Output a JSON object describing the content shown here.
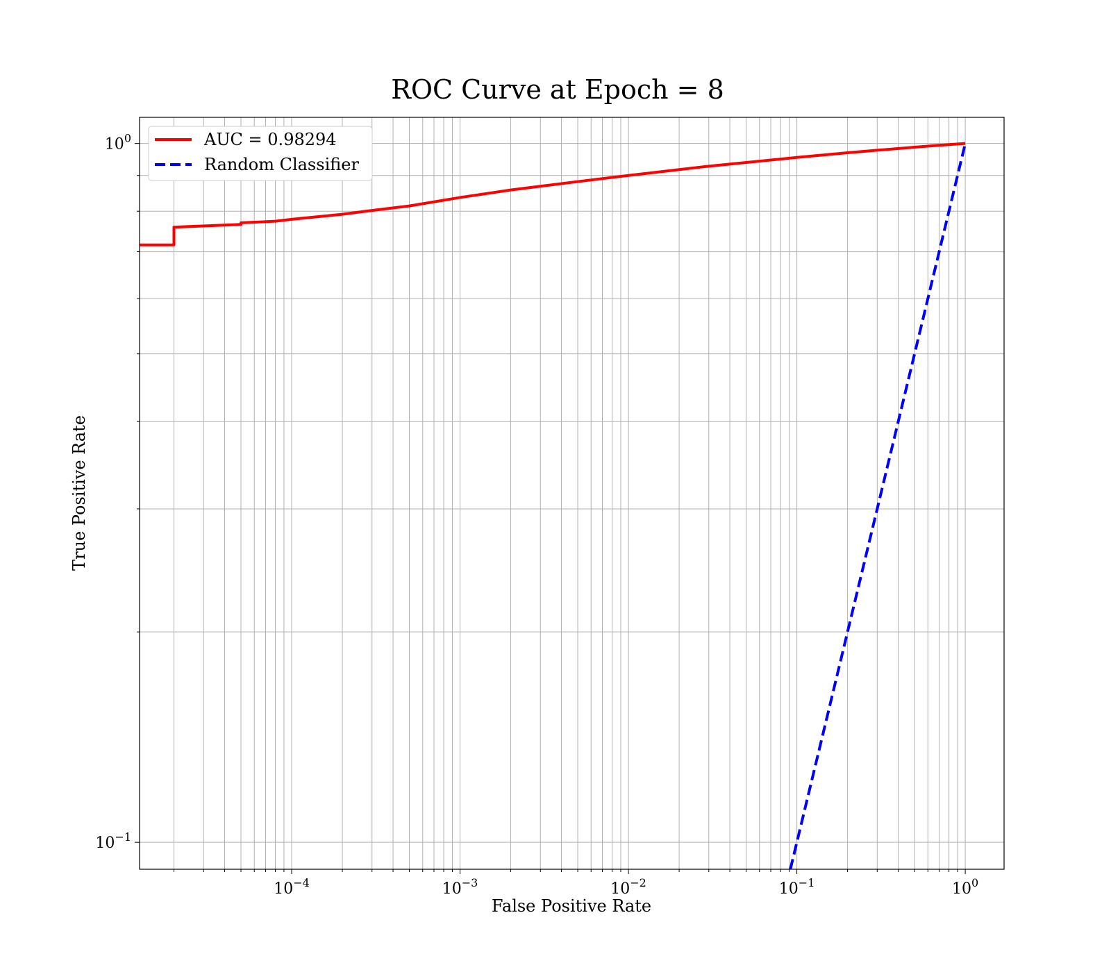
{
  "chart_data": {
    "type": "line",
    "title": "ROC Curve at Epoch = 8",
    "xlabel": "False Positive Rate",
    "ylabel": "True Positive Rate",
    "xscale": "log",
    "yscale": "log",
    "xlim": [
      1.25e-05,
      1.7
    ],
    "ylim": [
      0.0915,
      1.09
    ],
    "grid": true,
    "legend_position": "top-left",
    "x_tick_labels": [
      {
        "value": 0.0001,
        "base": "10",
        "exp": "−4"
      },
      {
        "value": 0.001,
        "base": "10",
        "exp": "−3"
      },
      {
        "value": 0.01,
        "base": "10",
        "exp": "−2"
      },
      {
        "value": 0.1,
        "base": "10",
        "exp": "−1"
      },
      {
        "value": 1,
        "base": "10",
        "exp": "0"
      }
    ],
    "y_tick_labels": [
      {
        "value": 1,
        "base": "10",
        "exp": "0"
      },
      {
        "value": 0.1,
        "base": "10",
        "exp": "−1"
      }
    ],
    "series": [
      {
        "name": "AUC = 0.98294",
        "color": "#ff0000",
        "style": "solid",
        "x": [
          1.25e-05,
          2e-05,
          2e-05,
          5e-05,
          5e-05,
          8e-05,
          0.0001,
          0.0002,
          0.0003,
          0.0005,
          0.001,
          0.002,
          0.005,
          0.01,
          0.03,
          0.1,
          0.2,
          0.3,
          0.5,
          0.7,
          1.0
        ],
        "y": [
          0.716,
          0.716,
          0.759,
          0.766,
          0.77,
          0.774,
          0.779,
          0.792,
          0.802,
          0.814,
          0.837,
          0.858,
          0.882,
          0.9,
          0.928,
          0.955,
          0.97,
          0.978,
          0.988,
          0.994,
          1.0
        ]
      },
      {
        "name": "Random Classifier",
        "color": "#0000ff",
        "style": "dashed",
        "x": [
          0.0915,
          1.0
        ],
        "y": [
          0.0915,
          1.0
        ]
      }
    ]
  }
}
